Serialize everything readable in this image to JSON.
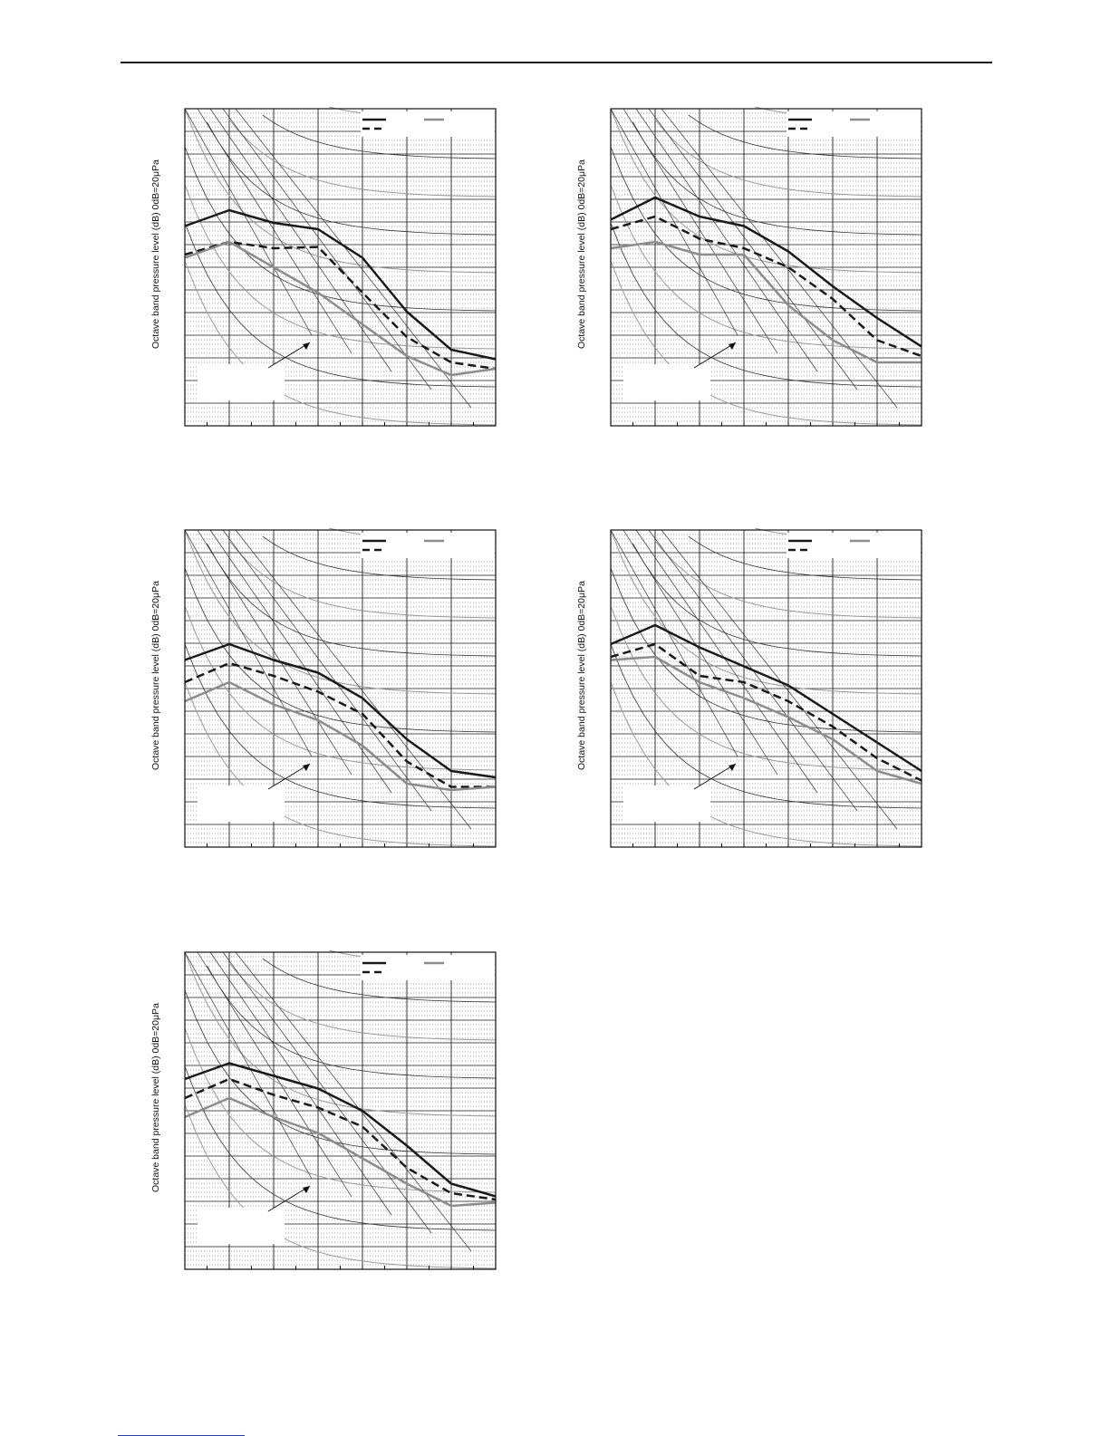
{
  "page": {
    "header_rule": true
  },
  "charts": [
    {
      "ylabel": "Octave band pressure level (dB) 0dB=20μPa"
    },
    {
      "ylabel": "Octave band pressure level (dB) 0dB=20μPa"
    },
    {
      "ylabel": "Octave band pressure level (dB) 0dB=20μPa"
    },
    {
      "ylabel": "Octave band pressure level (dB) 0dB=20μPa"
    },
    {
      "ylabel": "Octave band pressure level (dB) 0dB=20μPa"
    }
  ],
  "chart_data": [
    {
      "type": "line",
      "ylabel": "Octave band pressure level (dB) 0dB=20μPa",
      "x": [
        0,
        1,
        2,
        3,
        4,
        5,
        6,
        7
      ],
      "grid": true,
      "legend": "top-right",
      "series": [
        {
          "style": "solid-black",
          "color": "#1a1a1a",
          "values": [
            61.5,
            64,
            62,
            61,
            56.5,
            48,
            42,
            40.5
          ]
        },
        {
          "style": "dashed-black",
          "color": "#1a1a1a",
          "values": [
            57,
            59,
            58,
            58.2,
            51,
            44,
            40,
            39
          ]
        },
        {
          "style": "solid-gray",
          "color": "#8c8c8c",
          "values": [
            56.5,
            59,
            55,
            51,
            46,
            41,
            38,
            39
          ]
        }
      ]
    },
    {
      "type": "line",
      "ylabel": "Octave band pressure level (dB) 0dB=20μPa",
      "x": [
        0,
        1,
        2,
        3,
        4,
        5,
        6,
        7
      ],
      "grid": true,
      "legend": "top-right",
      "series": [
        {
          "style": "solid-black",
          "color": "#1a1a1a",
          "values": [
            62.5,
            66,
            63,
            61.5,
            57.5,
            52,
            47,
            42.5
          ]
        },
        {
          "style": "dashed-black",
          "color": "#1a1a1a",
          "values": [
            61,
            63,
            59.5,
            58,
            55,
            50,
            43.5,
            41
          ]
        },
        {
          "style": "solid-gray",
          "color": "#8c8c8c",
          "values": [
            58,
            59,
            57,
            57,
            49,
            43.5,
            40,
            40
          ]
        }
      ]
    },
    {
      "type": "line",
      "ylabel": "Octave band pressure level (dB) 0dB=20μPa",
      "x": [
        0,
        1,
        2,
        3,
        4,
        5,
        6,
        7
      ],
      "grid": true,
      "legend": "top-right",
      "series": [
        {
          "style": "solid-black",
          "color": "#1a1a1a",
          "values": [
            59.5,
            62,
            59.5,
            57.5,
            53.5,
            47,
            42,
            41
          ]
        },
        {
          "style": "dashed-black",
          "color": "#1a1a1a",
          "values": [
            56,
            59,
            57,
            54.5,
            51,
            43.5,
            39.5,
            39.5
          ]
        },
        {
          "style": "solid-gray",
          "color": "#8c8c8c",
          "values": [
            53,
            56,
            52.5,
            50,
            46,
            40,
            39,
            39.5
          ]
        }
      ]
    },
    {
      "type": "line",
      "ylabel": "Octave band pressure level (dB) 0dB=20μPa",
      "x": [
        0,
        1,
        2,
        3,
        4,
        5,
        6,
        7
      ],
      "grid": true,
      "legend": "top-right",
      "series": [
        {
          "style": "solid-black",
          "color": "#1a1a1a",
          "values": [
            62,
            65,
            61.5,
            58.5,
            55.5,
            51,
            46.5,
            42
          ]
        },
        {
          "style": "dashed-black",
          "color": "#1a1a1a",
          "values": [
            60,
            62,
            57,
            56,
            53,
            49,
            44,
            40.5
          ]
        },
        {
          "style": "solid-gray",
          "color": "#8c8c8c",
          "values": [
            59.5,
            60,
            56,
            53.5,
            50.5,
            47,
            42,
            40
          ]
        }
      ]
    },
    {
      "type": "line",
      "ylabel": "Octave band pressure level (dB) 0dB=20μPa",
      "x": [
        0,
        1,
        2,
        3,
        4,
        5,
        6,
        7
      ],
      "grid": true,
      "legend": "top-right",
      "series": [
        {
          "style": "solid-black",
          "color": "#1a1a1a",
          "values": [
            60,
            62.5,
            60.5,
            58.5,
            55,
            49.5,
            43.5,
            41.5
          ]
        },
        {
          "style": "dashed-black",
          "color": "#1a1a1a",
          "values": [
            57,
            60,
            57.5,
            55.5,
            52.5,
            46,
            42,
            41
          ]
        },
        {
          "style": "solid-gray",
          "color": "#8c8c8c",
          "values": [
            54,
            57,
            54,
            51.5,
            47.5,
            43.5,
            40,
            40.5
          ]
        }
      ]
    }
  ]
}
